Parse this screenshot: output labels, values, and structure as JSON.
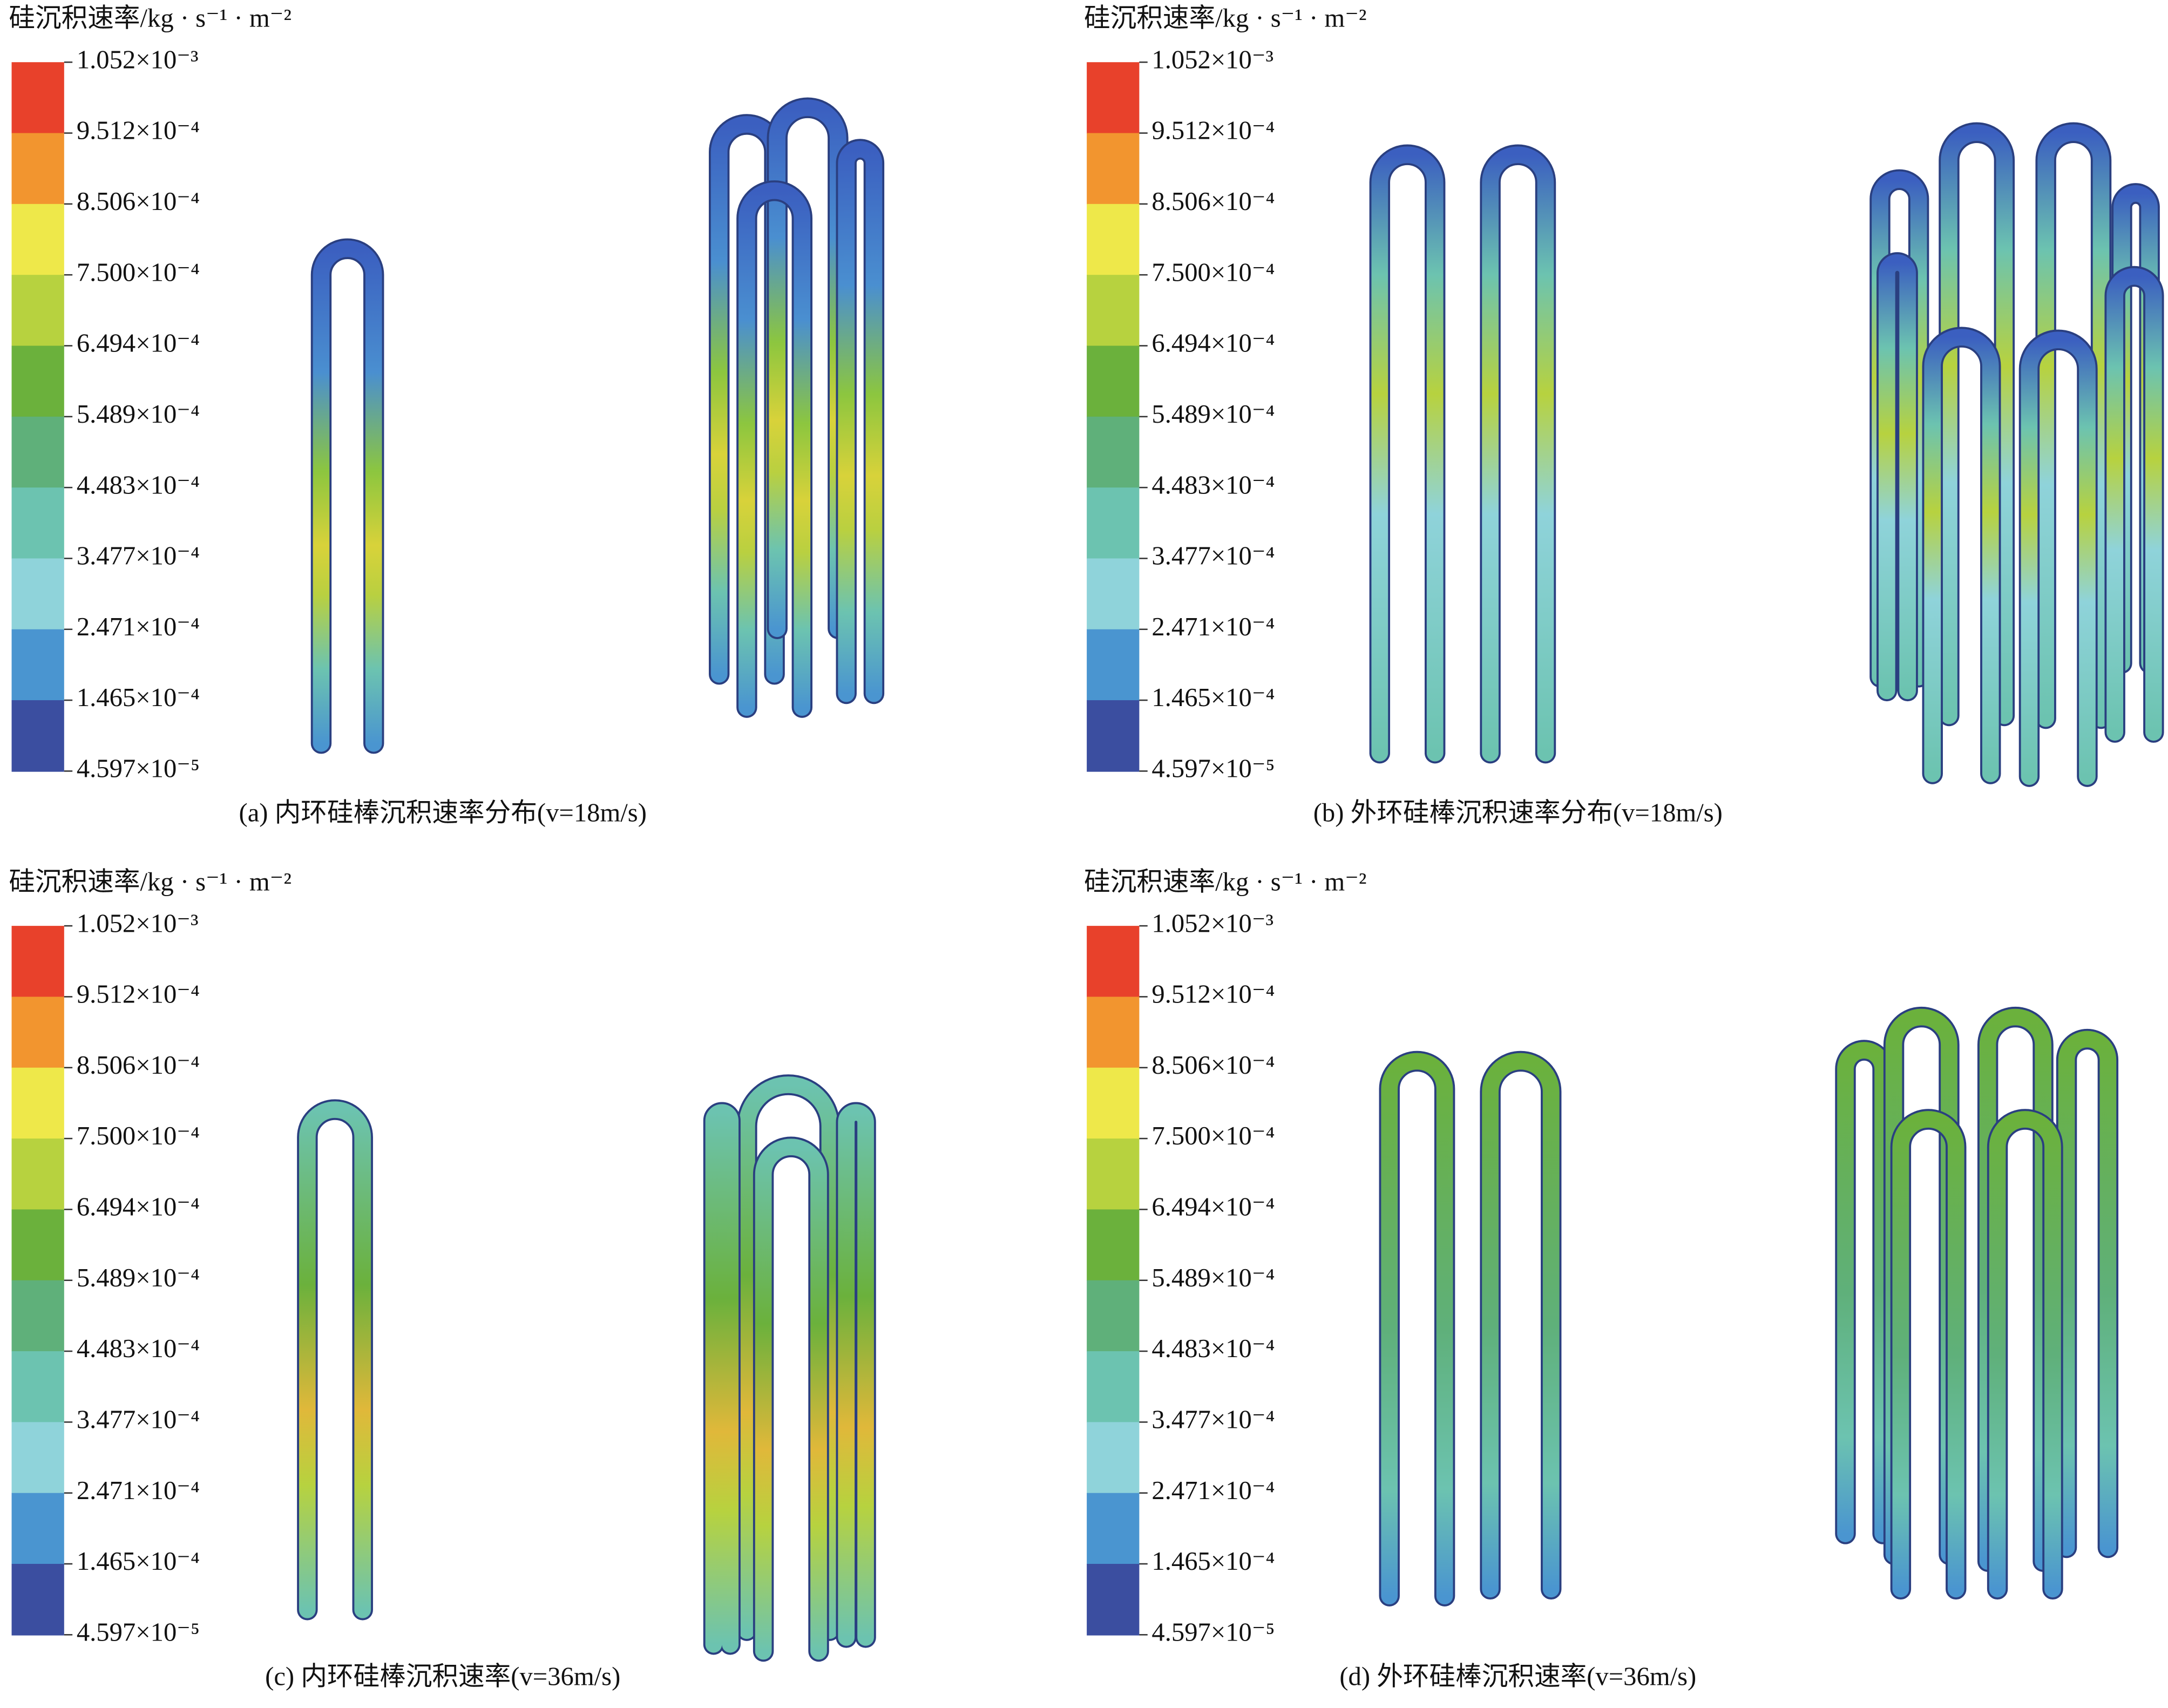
{
  "colorbar_colors": [
    "#e8412b",
    "#f2952f",
    "#eee84a",
    "#b7d23f",
    "#6bb13c",
    "#5fb07a",
    "#6cc3b0",
    "#8fd3da",
    "#4a95d0",
    "#3b4ea0"
  ],
  "panels": [
    {
      "legend_title": "硅沉积速率/kg · s⁻¹ · m⁻²",
      "legend_labels": [
        "1.052×10⁻³",
        "9.512×10⁻⁴",
        "8.506×10⁻⁴",
        "7.500×10⁻⁴",
        "6.494×10⁻⁴",
        "5.489×10⁻⁴",
        "4.483×10⁻⁴",
        "3.477×10⁻⁴",
        "2.471×10⁻⁴",
        "1.465×10⁻⁴",
        "4.597×10⁻⁵"
      ],
      "caption": "(a) 内环硅棒沉积速率分布(v=18m/s)"
    },
    {
      "legend_title": "硅沉积速率/kg · s⁻¹ · m⁻²",
      "legend_labels": [
        "1.052×10⁻³",
        "9.512×10⁻⁴",
        "8.506×10⁻⁴",
        "7.500×10⁻⁴",
        "6.494×10⁻⁴",
        "5.489×10⁻⁴",
        "4.483×10⁻⁴",
        "3.477×10⁻⁴",
        "2.471×10⁻⁴",
        "1.465×10⁻⁴",
        "4.597×10⁻⁵"
      ],
      "caption": "(b) 外环硅棒沉积速率分布(v=18m/s)"
    },
    {
      "legend_title": "硅沉积速率/kg · s⁻¹ · m⁻²",
      "legend_labels": [
        "1.052×10⁻³",
        "9.512×10⁻⁴",
        "8.506×10⁻⁴",
        "7.500×10⁻⁴",
        "6.494×10⁻⁴",
        "5.489×10⁻⁴",
        "4.483×10⁻⁴",
        "3.477×10⁻⁴",
        "2.471×10⁻⁴",
        "1.465×10⁻⁴",
        "4.597×10⁻⁵"
      ],
      "caption": "(c) 内环硅棒沉积速率(v=36m/s)"
    },
    {
      "legend_title": "硅沉积速率/kg · s⁻¹ · m⁻²",
      "legend_labels": [
        "1.052×10⁻³",
        "9.512×10⁻⁴",
        "8.506×10⁻⁴",
        "7.500×10⁻⁴",
        "6.494×10⁻⁴",
        "5.489×10⁻⁴",
        "4.483×10⁻⁴",
        "3.477×10⁻⁴",
        "2.471×10⁻⁴",
        "1.465×10⁻⁴",
        "4.597×10⁻⁵"
      ],
      "caption": "(d) 外环硅棒沉积速率(v=36m/s)"
    }
  ]
}
